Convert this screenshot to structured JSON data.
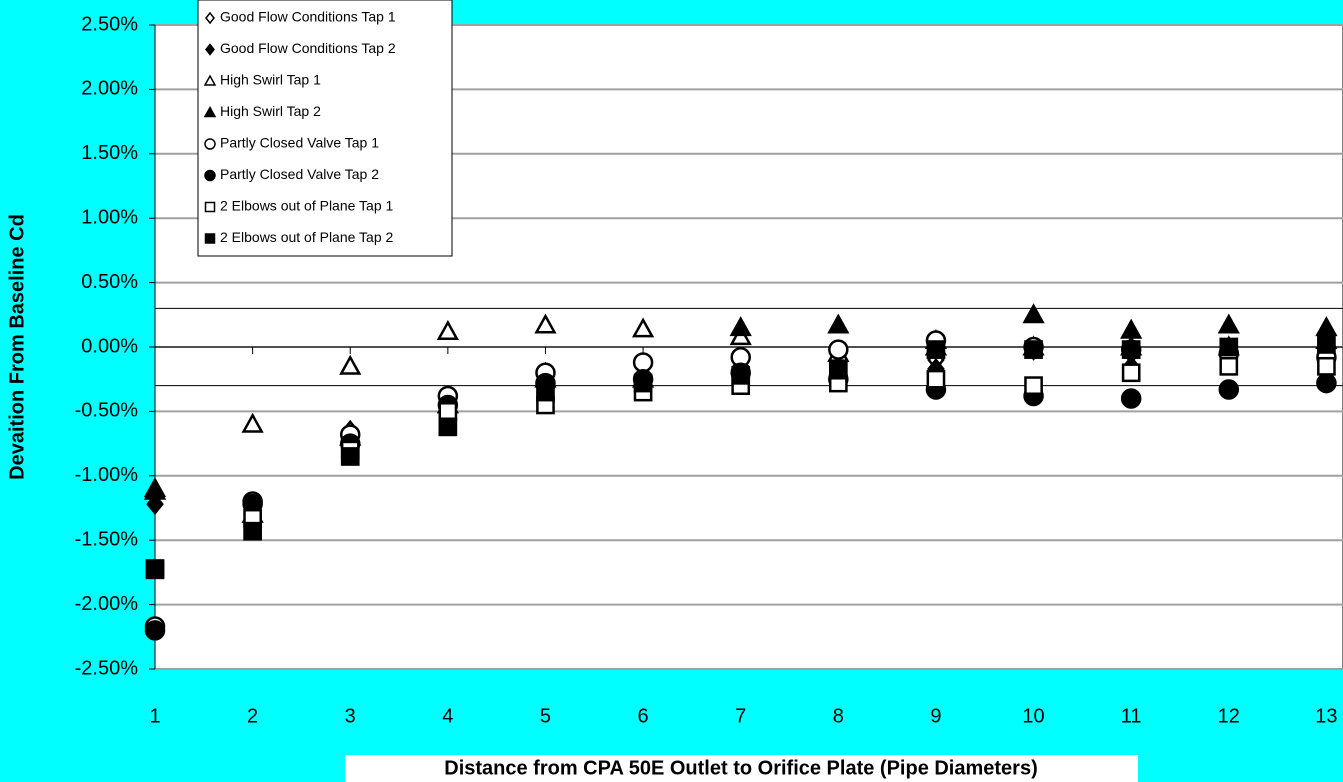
{
  "chart_data": {
    "type": "scatter",
    "y_label": "Devaition From Baseline Cd",
    "x_label": "Distance from CPA 50E Outlet to Orifice Plate (Pipe Diameters)",
    "x": [
      1,
      2,
      3,
      4,
      5,
      6,
      7,
      8,
      9,
      10,
      11,
      12,
      13
    ],
    "xlim": [
      1,
      13.17
    ],
    "xticks": [
      1,
      2,
      3,
      4,
      5,
      6,
      7,
      8,
      9,
      10,
      11,
      12,
      13
    ],
    "ylim": [
      -2.5,
      2.5
    ],
    "yticks": [
      {
        "value": -2.5,
        "label": "-2.50%"
      },
      {
        "value": -2,
        "label": "-2.00%"
      },
      {
        "value": -1.5,
        "label": "-1.50%"
      },
      {
        "value": -1,
        "label": "-1.00%"
      },
      {
        "value": -0.5,
        "label": "-0.50%"
      },
      {
        "value": 0,
        "label": "0.00%"
      },
      {
        "value": 0.5,
        "label": "0.50%"
      },
      {
        "value": 1,
        "label": "1.00%"
      },
      {
        "value": 1.5,
        "label": "1.50%"
      },
      {
        "value": 2,
        "label": "2.00%"
      },
      {
        "value": 2.5,
        "label": "2.50%"
      }
    ],
    "reference_lines": [
      0.3,
      -0.3
    ],
    "grid": true,
    "legend": "top-left",
    "series": [
      {
        "name": "Good Flow Conditions Tap 1",
        "color": "#000000",
        "marker": "diamond",
        "filled": false,
        "values": [
          -1.15,
          -1.3,
          -0.65,
          -0.4,
          -0.2,
          -0.25,
          -0.1,
          -0.05,
          -0.1,
          -0.02,
          -0.05,
          -0.05,
          -0.1
        ]
      },
      {
        "name": "Good Flow Conditions Tap 2",
        "color": "#000000",
        "marker": "diamond",
        "filled": true,
        "values": [
          -1.22,
          -1.35,
          -0.7,
          -0.45,
          -0.25,
          -0.28,
          -0.15,
          -0.2,
          -0.17,
          -0.02,
          -0.15,
          -0.02,
          -0.05
        ]
      },
      {
        "name": "High Swirl Tap 1",
        "color": "#000000",
        "marker": "triangle",
        "filled": false,
        "values": [
          -1.1,
          -0.6,
          -0.15,
          0.12,
          0.17,
          0.14,
          0.08,
          -0.05,
          0.0,
          0.0,
          0.0,
          0.0,
          0.05
        ]
      },
      {
        "name": "High Swirl Tap 2",
        "color": "#000000",
        "marker": "triangle",
        "filled": true,
        "values": [
          -1.12,
          -1.3,
          -0.7,
          -0.45,
          -0.25,
          -0.25,
          0.15,
          0.17,
          0.05,
          0.25,
          0.13,
          0.17,
          0.15
        ]
      },
      {
        "name": "Partly Closed Valve Tap 1",
        "color": "#000000",
        "marker": "circle",
        "filled": false,
        "values": [
          -2.17,
          -1.2,
          -0.68,
          -0.38,
          -0.2,
          -0.12,
          -0.08,
          -0.02,
          0.05,
          0.0,
          -0.02,
          -0.05,
          -0.08
        ]
      },
      {
        "name": "Partly Closed Valve Tap 2",
        "color": "#000000",
        "marker": "circle",
        "filled": true,
        "values": [
          -2.2,
          -1.22,
          -0.75,
          -0.45,
          -0.28,
          -0.25,
          -0.2,
          -0.25,
          -0.33,
          -0.38,
          -0.4,
          -0.33,
          -0.28
        ]
      },
      {
        "name": "2 Elbows out of Plane Tap 1",
        "color": "#000000",
        "marker": "square",
        "filled": false,
        "values": [
          -1.72,
          -1.33,
          -0.8,
          -0.5,
          -0.45,
          -0.35,
          -0.3,
          -0.28,
          -0.25,
          -0.3,
          -0.2,
          -0.15,
          -0.15
        ]
      },
      {
        "name": "2 Elbows out of Plane Tap 2",
        "color": "#000000",
        "marker": "square",
        "filled": true,
        "values": [
          -1.73,
          -1.43,
          -0.85,
          -0.62,
          -0.35,
          -0.28,
          -0.22,
          -0.18,
          -0.02,
          -0.02,
          -0.02,
          0.0,
          0.02
        ]
      }
    ]
  }
}
